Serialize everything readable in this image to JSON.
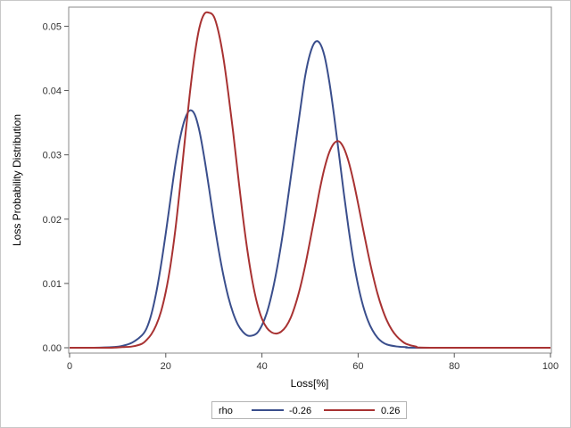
{
  "chart_data": {
    "type": "line",
    "title": "",
    "xlabel": "Loss[%]",
    "ylabel": "Loss Probability Distribution",
    "xlim": [
      0,
      100
    ],
    "ylim": [
      0,
      0.052
    ],
    "x_ticks": [
      0,
      20,
      40,
      60,
      80,
      100
    ],
    "y_ticks": [
      0.0,
      0.01,
      0.02,
      0.03,
      0.04,
      0.05
    ],
    "y_tick_labels": [
      "0.00",
      "0.01",
      "0.02",
      "0.03",
      "0.04",
      "0.05"
    ],
    "grid": false,
    "legend": {
      "title": "rho",
      "placement": "bottom"
    },
    "series": [
      {
        "name": "-0.26",
        "color": "#3a4e8c",
        "points": [
          [
            0,
            0
          ],
          [
            5,
            0
          ],
          [
            9,
            0.0001
          ],
          [
            11,
            0.0003
          ],
          [
            13,
            0.0008
          ],
          [
            15,
            0.0019
          ],
          [
            16,
            0.003
          ],
          [
            17,
            0.0052
          ],
          [
            18,
            0.0085
          ],
          [
            19,
            0.0128
          ],
          [
            20,
            0.0178
          ],
          [
            21,
            0.0232
          ],
          [
            22,
            0.0285
          ],
          [
            23,
            0.0327
          ],
          [
            24,
            0.0356
          ],
          [
            25,
            0.0369
          ],
          [
            26,
            0.0363
          ],
          [
            27,
            0.0337
          ],
          [
            28,
            0.0296
          ],
          [
            29,
            0.0248
          ],
          [
            30,
            0.0198
          ],
          [
            31,
            0.0152
          ],
          [
            32,
            0.0112
          ],
          [
            33,
            0.0079
          ],
          [
            34,
            0.0054
          ],
          [
            35,
            0.0036
          ],
          [
            36,
            0.0025
          ],
          [
            37,
            0.0019
          ],
          [
            38,
            0.0019
          ],
          [
            39,
            0.0023
          ],
          [
            40,
            0.0035
          ],
          [
            41,
            0.0054
          ],
          [
            42,
            0.0082
          ],
          [
            43,
            0.0118
          ],
          [
            44,
            0.0161
          ],
          [
            45,
            0.0211
          ],
          [
            46,
            0.0265
          ],
          [
            47,
            0.0318
          ],
          [
            48,
            0.0372
          ],
          [
            49,
            0.0423
          ],
          [
            50,
            0.0457
          ],
          [
            51,
            0.0475
          ],
          [
            52,
            0.0474
          ],
          [
            53,
            0.0454
          ],
          [
            54,
            0.0414
          ],
          [
            55,
            0.0361
          ],
          [
            56,
            0.0302
          ],
          [
            57,
            0.0242
          ],
          [
            58,
            0.0186
          ],
          [
            59,
            0.0137
          ],
          [
            60,
            0.0097
          ],
          [
            61,
            0.0066
          ],
          [
            62,
            0.0043
          ],
          [
            63,
            0.0027
          ],
          [
            64,
            0.0016
          ],
          [
            65,
            0.0009
          ],
          [
            66,
            0.0005
          ],
          [
            68,
            0.0002
          ],
          [
            70,
            0.0001
          ],
          [
            73,
            0
          ],
          [
            100,
            0
          ]
        ]
      },
      {
        "name": "0.26",
        "color": "#a83232",
        "points": [
          [
            0,
            0
          ],
          [
            8,
            0
          ],
          [
            11,
            0.0001
          ],
          [
            13,
            0.0002
          ],
          [
            15,
            0.0006
          ],
          [
            16,
            0.0012
          ],
          [
            17,
            0.0021
          ],
          [
            18,
            0.0035
          ],
          [
            19,
            0.0056
          ],
          [
            20,
            0.0087
          ],
          [
            21,
            0.0129
          ],
          [
            22,
            0.0184
          ],
          [
            23,
            0.0252
          ],
          [
            24,
            0.0325
          ],
          [
            25,
            0.0395
          ],
          [
            26,
            0.0455
          ],
          [
            27,
            0.0498
          ],
          [
            28,
            0.0519
          ],
          [
            29,
            0.0521
          ],
          [
            30,
            0.0515
          ],
          [
            31,
            0.049
          ],
          [
            32,
            0.045
          ],
          [
            33,
            0.0396
          ],
          [
            34,
            0.0336
          ],
          [
            35,
            0.027
          ],
          [
            36,
            0.0206
          ],
          [
            37,
            0.015
          ],
          [
            38,
            0.0104
          ],
          [
            39,
            0.0069
          ],
          [
            40,
            0.0045
          ],
          [
            41,
            0.0031
          ],
          [
            42,
            0.0024
          ],
          [
            43,
            0.0022
          ],
          [
            44,
            0.0025
          ],
          [
            45,
            0.0033
          ],
          [
            46,
            0.0047
          ],
          [
            47,
            0.0068
          ],
          [
            48,
            0.0095
          ],
          [
            49,
            0.0128
          ],
          [
            50,
            0.0166
          ],
          [
            51,
            0.0205
          ],
          [
            52,
            0.0245
          ],
          [
            53,
            0.0279
          ],
          [
            54,
            0.0304
          ],
          [
            55,
            0.0318
          ],
          [
            56,
            0.0321
          ],
          [
            57,
            0.0311
          ],
          [
            58,
            0.029
          ],
          [
            59,
            0.026
          ],
          [
            60,
            0.0224
          ],
          [
            61,
            0.0186
          ],
          [
            62,
            0.0149
          ],
          [
            63,
            0.0115
          ],
          [
            64,
            0.0085
          ],
          [
            65,
            0.0061
          ],
          [
            66,
            0.0042
          ],
          [
            67,
            0.0028
          ],
          [
            68,
            0.0018
          ],
          [
            69,
            0.0011
          ],
          [
            70,
            0.0006
          ],
          [
            72,
            0.0002
          ],
          [
            75,
            0
          ],
          [
            100,
            0
          ]
        ]
      }
    ]
  }
}
